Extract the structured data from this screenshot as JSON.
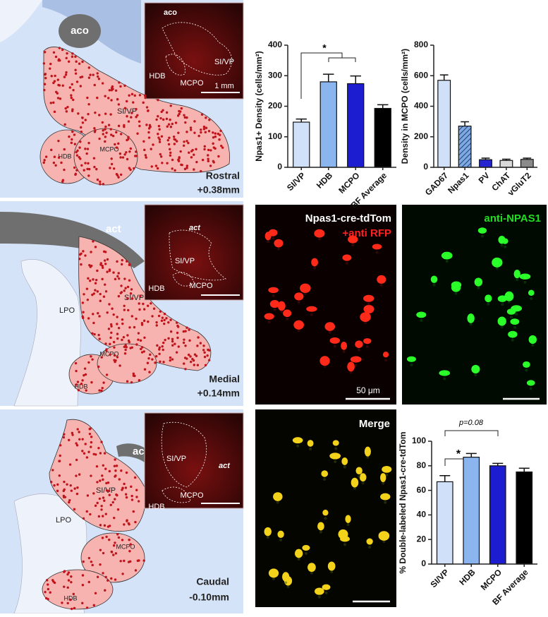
{
  "atlas": [
    {
      "level": "Rostral",
      "coordinate": "+0.38mm",
      "tract": "aco",
      "regions": [
        "SI/VP",
        "HDB",
        "MCPO"
      ],
      "inset": {
        "tract": "aco",
        "regions": [
          "SI/VP",
          "HDB",
          "MCPO"
        ],
        "scale": "1 mm"
      }
    },
    {
      "level": "Medial",
      "coordinate": "+0.14mm",
      "tract": "act",
      "regions": [
        "SI/VP",
        "HDB",
        "MCPO",
        "LPO"
      ],
      "inset": {
        "tract": "act",
        "regions": [
          "SI/VP",
          "HDB",
          "MCPO"
        ]
      }
    },
    {
      "level": "Caudal",
      "coordinate": "-0.10mm",
      "tract": "act",
      "regions": [
        "SI/VP",
        "HDB",
        "MCPO",
        "LPO"
      ],
      "inset": {
        "tract": "act",
        "regions": [
          "SI/VP",
          "HDB",
          "MCPO"
        ]
      }
    }
  ],
  "micrographs": {
    "tdtom_title": "Npas1-cre-tdTom",
    "tdtom_subtitle": "+anti RFP",
    "npas1_title": "anti-NPAS1",
    "merge_title": "Merge",
    "scale": "50 μm"
  },
  "chart_data": [
    {
      "type": "bar",
      "y_label": "Npas1+ Density (cells/mm²)",
      "categories": [
        "SI/VP",
        "HDB",
        "MCPO",
        "BF Average"
      ],
      "values": [
        148,
        280,
        274,
        193
      ],
      "errors": [
        10,
        25,
        25,
        12
      ],
      "colors": [
        "#cfe0f8",
        "#8bb5ee",
        "#1c1cd0",
        "#000000"
      ],
      "ylim": [
        0,
        400
      ],
      "yticks": [
        0,
        100,
        200,
        300,
        400
      ],
      "annotations": [
        "*"
      ]
    },
    {
      "type": "bar",
      "y_label": "Density in MCPO (cells/mm²)",
      "categories": [
        "GAD67",
        "Npas1",
        "PV",
        "ChAT",
        "vGluT2"
      ],
      "values": [
        570,
        270,
        50,
        45,
        52
      ],
      "errors": [
        35,
        28,
        10,
        8,
        8
      ],
      "colors": [
        "#cfe0f8",
        "#7fa8dc",
        "#2424d0",
        "#d9d9d9",
        "#8a8a8a"
      ],
      "hatched": [
        false,
        true,
        false,
        false,
        false
      ],
      "ylim": [
        0,
        800
      ],
      "yticks": [
        0,
        200,
        400,
        600,
        800
      ]
    },
    {
      "type": "bar",
      "y_label": "% Double-labeled Npas1-cre-tdTom",
      "categories": [
        "SI/VP",
        "HDB",
        "MCPO",
        "BF Average"
      ],
      "values": [
        67,
        87,
        80,
        75
      ],
      "errors": [
        5,
        3,
        2,
        3
      ],
      "colors": [
        "#cfe0f8",
        "#8bb5ee",
        "#1c1cd0",
        "#000000"
      ],
      "ylim": [
        0,
        100
      ],
      "yticks": [
        0,
        20,
        40,
        60,
        80,
        100
      ],
      "annotations": [
        "*",
        "p=0.08"
      ]
    }
  ]
}
